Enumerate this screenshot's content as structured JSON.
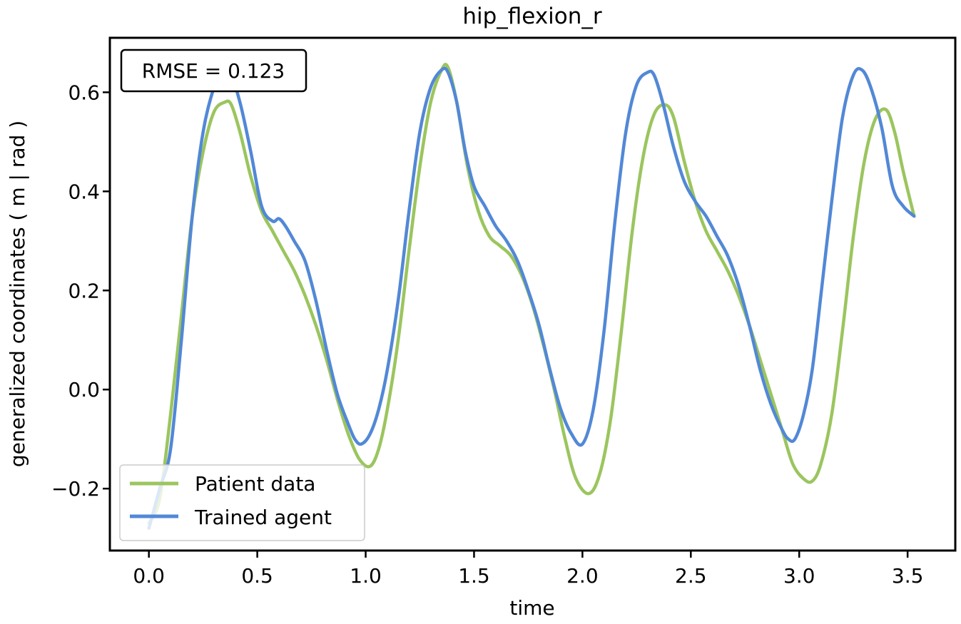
{
  "chart_data": {
    "type": "line",
    "title": "hip_flexion_r",
    "xlabel": "time",
    "ylabel": "generalized coordinates ( m | rad )",
    "xlim": [
      -0.18,
      3.72
    ],
    "ylim": [
      -0.325,
      0.71
    ],
    "xticks": [
      0.0,
      0.5,
      1.0,
      1.5,
      2.0,
      2.5,
      3.0,
      3.5
    ],
    "xtick_labels": [
      "0.0",
      "0.5",
      "1.0",
      "1.5",
      "2.0",
      "2.5",
      "3.0",
      "3.5"
    ],
    "yticks": [
      -0.2,
      0.0,
      0.2,
      0.4,
      0.6
    ],
    "ytick_labels": [
      "−0.2",
      "0.0",
      "0.2",
      "0.4",
      "0.6"
    ],
    "grid": false,
    "legend_position": "lower-left",
    "annotation": "RMSE = 0.123",
    "series": [
      {
        "name": "Patient data",
        "color": "#9bc55e",
        "x": [
          0.0,
          0.05,
          0.1,
          0.15,
          0.2,
          0.25,
          0.3,
          0.35,
          0.38,
          0.42,
          0.47,
          0.52,
          0.57,
          0.62,
          0.67,
          0.72,
          0.77,
          0.82,
          0.87,
          0.92,
          0.97,
          1.02,
          1.06,
          1.1,
          1.15,
          1.2,
          1.25,
          1.3,
          1.35,
          1.38,
          1.42,
          1.47,
          1.52,
          1.57,
          1.62,
          1.67,
          1.72,
          1.77,
          1.82,
          1.87,
          1.92,
          1.97,
          2.03,
          2.08,
          2.13,
          2.18,
          2.23,
          2.28,
          2.33,
          2.38,
          2.42,
          2.47,
          2.52,
          2.57,
          2.62,
          2.67,
          2.72,
          2.77,
          2.82,
          2.87,
          2.92,
          2.97,
          3.02,
          3.06,
          3.1,
          3.15,
          3.2,
          3.25,
          3.3,
          3.35,
          3.4,
          3.44,
          3.48,
          3.53
        ],
        "y": [
          -0.27,
          -0.22,
          -0.05,
          0.15,
          0.35,
          0.48,
          0.56,
          0.58,
          0.575,
          0.52,
          0.43,
          0.36,
          0.32,
          0.28,
          0.24,
          0.19,
          0.13,
          0.06,
          -0.02,
          -0.09,
          -0.14,
          -0.155,
          -0.12,
          -0.04,
          0.1,
          0.28,
          0.45,
          0.58,
          0.645,
          0.65,
          0.58,
          0.45,
          0.36,
          0.31,
          0.29,
          0.27,
          0.23,
          0.17,
          0.09,
          0.0,
          -0.1,
          -0.18,
          -0.21,
          -0.17,
          -0.06,
          0.12,
          0.32,
          0.47,
          0.555,
          0.575,
          0.55,
          0.46,
          0.38,
          0.32,
          0.28,
          0.24,
          0.19,
          0.13,
          0.06,
          -0.01,
          -0.08,
          -0.15,
          -0.18,
          -0.185,
          -0.15,
          -0.05,
          0.12,
          0.31,
          0.46,
          0.545,
          0.565,
          0.52,
          0.44,
          0.35
        ]
      },
      {
        "name": "Trained agent",
        "color": "#5288d6",
        "x": [
          0.0,
          0.05,
          0.1,
          0.15,
          0.2,
          0.25,
          0.3,
          0.33,
          0.37,
          0.42,
          0.47,
          0.52,
          0.57,
          0.6,
          0.63,
          0.67,
          0.72,
          0.77,
          0.82,
          0.87,
          0.92,
          0.95,
          0.98,
          1.02,
          1.06,
          1.1,
          1.15,
          1.2,
          1.25,
          1.3,
          1.35,
          1.38,
          1.42,
          1.46,
          1.5,
          1.55,
          1.6,
          1.65,
          1.7,
          1.75,
          1.8,
          1.85,
          1.9,
          1.95,
          2.0,
          2.05,
          2.1,
          2.15,
          2.2,
          2.25,
          2.3,
          2.33,
          2.37,
          2.42,
          2.47,
          2.52,
          2.57,
          2.62,
          2.67,
          2.72,
          2.77,
          2.82,
          2.87,
          2.92,
          2.95,
          2.98,
          3.02,
          3.06,
          3.1,
          3.15,
          3.2,
          3.25,
          3.29,
          3.33,
          3.38,
          3.43,
          3.48,
          3.53
        ],
        "y": [
          -0.28,
          -0.2,
          -0.12,
          0.1,
          0.35,
          0.52,
          0.61,
          0.64,
          0.645,
          0.58,
          0.48,
          0.37,
          0.34,
          0.345,
          0.33,
          0.3,
          0.26,
          0.18,
          0.08,
          -0.01,
          -0.07,
          -0.1,
          -0.11,
          -0.09,
          -0.04,
          0.04,
          0.18,
          0.36,
          0.52,
          0.61,
          0.645,
          0.64,
          0.58,
          0.48,
          0.41,
          0.37,
          0.33,
          0.3,
          0.26,
          0.2,
          0.13,
          0.04,
          -0.04,
          -0.09,
          -0.11,
          -0.04,
          0.12,
          0.34,
          0.52,
          0.615,
          0.64,
          0.635,
          0.58,
          0.49,
          0.42,
          0.38,
          0.35,
          0.31,
          0.27,
          0.21,
          0.13,
          0.04,
          -0.03,
          -0.08,
          -0.1,
          -0.1,
          -0.05,
          0.04,
          0.19,
          0.38,
          0.55,
          0.635,
          0.645,
          0.61,
          0.53,
          0.41,
          0.37,
          0.35
        ]
      }
    ]
  }
}
